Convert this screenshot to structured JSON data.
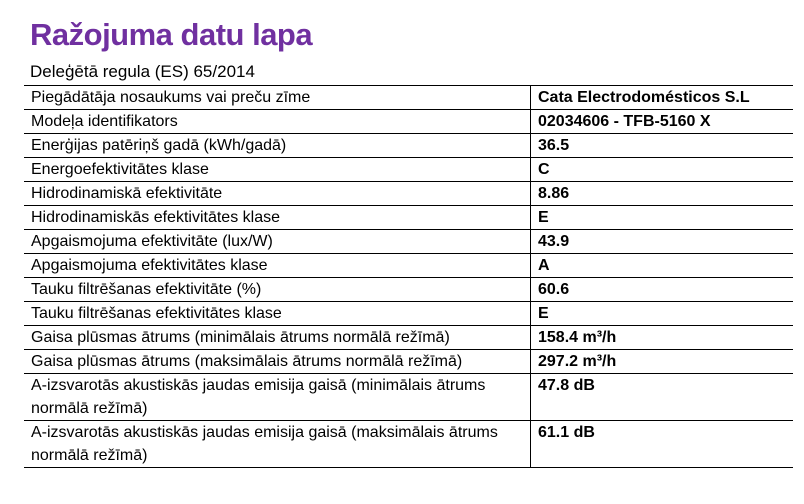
{
  "page": {
    "title": "Ražojuma datu lapa",
    "subtitle": "Deleģētā regula (ES) 65/2014"
  },
  "colors": {
    "title": "#7030A0",
    "text": "#000000",
    "border": "#000000",
    "background": "#FFFFFF"
  },
  "table": {
    "rows": [
      {
        "label": "Piegādātāja nosaukums vai preču zīme",
        "value": "Cata Electrodomésticos S.L"
      },
      {
        "label": "Modeļa identifikators",
        "value": "02034606 - TFB-5160 X"
      },
      {
        "label": "Enerģijas patēriņš gadā (kWh/gadā)",
        "value": "36.5"
      },
      {
        "label": "Energoefektivitātes klase",
        "value": "C"
      },
      {
        "label": "Hidrodinamiskā efektivitāte",
        "value": "8.86"
      },
      {
        "label": "Hidrodinamiskās efektivitātes klase",
        "value": "E"
      },
      {
        "label": "Apgaismojuma efektivitāte (lux/W)",
        "value": "43.9"
      },
      {
        "label": "Apgaismojuma efektivitātes klase",
        "value": "A"
      },
      {
        "label": "Tauku filtrēšanas efektivitāte (%)",
        "value": "60.6"
      },
      {
        "label": "Tauku filtrēšanas efektivitātes klase",
        "value": "E"
      },
      {
        "label": "Gaisa plūsmas ātrums (minimālais ātrums normālā režīmā)",
        "value": "158.4 m³/h"
      },
      {
        "label": "Gaisa plūsmas ātrums (maksimālais ātrums normālā režīmā)",
        "value": "297.2 m³/h"
      },
      {
        "label": "A-izsvarotās akustiskās jaudas emisija gaisā (minimālais ātrums normālā režīmā)",
        "value": "47.8 dB"
      },
      {
        "label": "A-izsvarotās akustiskās jaudas emisija gaisā (maksimālais ātrums normālā režīmā)",
        "value": "61.1 dB"
      }
    ]
  }
}
